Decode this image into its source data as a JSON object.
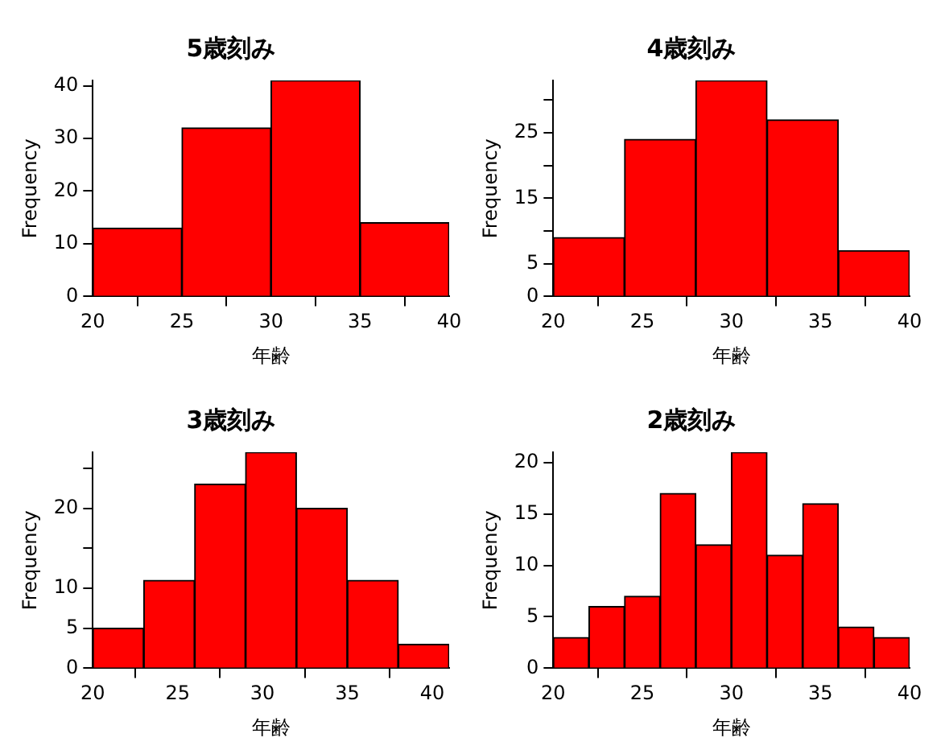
{
  "chart_data": [
    {
      "type": "histogram",
      "title": "5歳刻み",
      "xlabel": "年齢",
      "ylabel": "Frequency",
      "bins": [
        20,
        25,
        30,
        35,
        40
      ],
      "values": [
        13,
        32,
        41,
        14
      ],
      "color": "#ff0000",
      "xlim": [
        20,
        40
      ],
      "xticks": [
        20,
        25,
        30,
        35,
        40
      ],
      "ylim": [
        0,
        41
      ],
      "yticks": [
        0,
        10,
        20,
        30,
        40
      ]
    },
    {
      "type": "histogram",
      "title": "4歳刻み",
      "xlabel": "年齢",
      "ylabel": "Frequency",
      "bins": [
        20,
        24,
        28,
        32,
        36,
        40
      ],
      "values": [
        9,
        24,
        33,
        27,
        7
      ],
      "color": "#ff0000",
      "xlim": [
        20,
        40
      ],
      "xticks": [
        20,
        25,
        30,
        35,
        40
      ],
      "ylim": [
        0,
        33
      ],
      "yticks": [
        0,
        5,
        {
          "value": 10,
          "label": null
        },
        15,
        {
          "value": 20,
          "label": null
        },
        25,
        {
          "value": 30,
          "label": null
        }
      ]
    },
    {
      "type": "histogram",
      "title": "3歳刻み",
      "xlabel": "年齢",
      "ylabel": "Frequency",
      "bins": [
        20,
        23,
        26,
        29,
        32,
        35,
        38,
        41
      ],
      "values": [
        5,
        11,
        23,
        27,
        20,
        11,
        3
      ],
      "color": "#ff0000",
      "xlim": [
        20,
        41
      ],
      "xticks": [
        20,
        25,
        30,
        35,
        40
      ],
      "ylim": [
        0,
        27
      ],
      "yticks": [
        0,
        5,
        10,
        {
          "value": 15,
          "label": null
        },
        20,
        {
          "value": 25,
          "label": null
        }
      ]
    },
    {
      "type": "histogram",
      "title": "2歳刻み",
      "xlabel": "年齢",
      "ylabel": "Frequency",
      "bins": [
        20,
        22,
        24,
        26,
        28,
        30,
        32,
        34,
        36,
        38,
        40
      ],
      "values": [
        3,
        6,
        7,
        17,
        12,
        21,
        11,
        16,
        4,
        3
      ],
      "color": "#ff0000",
      "xlim": [
        20,
        40
      ],
      "xticks": [
        20,
        25,
        30,
        35,
        40
      ],
      "ylim": [
        0,
        21
      ],
      "yticks": [
        0,
        5,
        10,
        15,
        20
      ]
    }
  ]
}
